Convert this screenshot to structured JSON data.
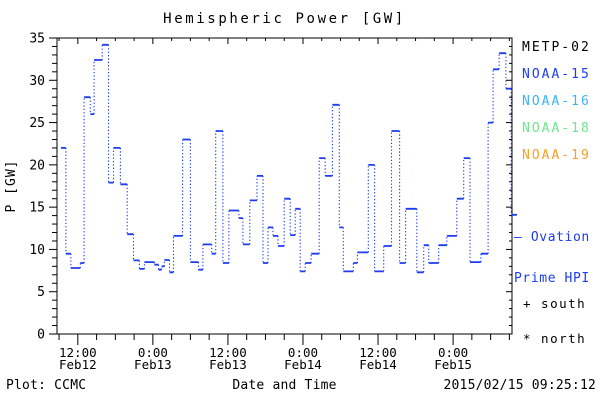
{
  "title": "Hemispheric Power [GW]",
  "footer": {
    "plot_credit": "Plot: CCMC",
    "xaxis_title": "Date and Time",
    "timestamp": "2015/02/15 09:25:12"
  },
  "legend": {
    "satellites": [
      {
        "label": "METP-02",
        "color": "#000000"
      },
      {
        "label": "NOAA-15",
        "color": "#1E3CF0"
      },
      {
        "label": "NOAA-16",
        "color": "#3CB4F0"
      },
      {
        "label": "NOAA-18",
        "color": "#6EE68C"
      },
      {
        "label": "NOAA-19",
        "color": "#F5A028"
      }
    ],
    "line_label_line1": "– Ovation",
    "line_label_line2": "Prime HPI",
    "line_label_color": "#1E3CF0",
    "marker_south": "+ south",
    "marker_north": "* north"
  },
  "chart_data": {
    "type": "line",
    "subtype": "step",
    "title": "Hemispheric Power [GW]",
    "xlabel": "Date and Time",
    "ylabel": "P [GW]",
    "ylim": [
      0,
      35
    ],
    "y_major_ticks": [
      0,
      5,
      10,
      15,
      20,
      25,
      30,
      35
    ],
    "y_minor_step": 1,
    "x_hours_range": [
      8.67,
      81.42
    ],
    "x_minor_step_hours": 3,
    "x_major_ticks": [
      {
        "hour": 12,
        "time": "12:00",
        "date": "Feb12"
      },
      {
        "hour": 24,
        "time": "0:00",
        "date": "Feb13"
      },
      {
        "hour": 36,
        "time": "12:00",
        "date": "Feb13"
      },
      {
        "hour": 48,
        "time": "0:00",
        "date": "Feb14"
      },
      {
        "hour": 60,
        "time": "12:00",
        "date": "Feb14"
      },
      {
        "hour": 72,
        "time": "0:00",
        "date": "Feb15"
      }
    ],
    "grid": false,
    "legend_position": "right",
    "series": [
      {
        "name": "Ovation Prime HPI",
        "color": "#1E3CF0",
        "style": "solid horizontal steps joined by dotted verticals",
        "steps_hour_start_end_gw": [
          [
            9.3,
            10.1,
            22.0
          ],
          [
            10.1,
            10.9,
            9.5
          ],
          [
            10.9,
            12.4,
            7.8
          ],
          [
            12.4,
            13.0,
            8.4
          ],
          [
            13.0,
            14.0,
            28.0
          ],
          [
            14.0,
            14.6,
            26.0
          ],
          [
            14.6,
            15.9,
            32.4
          ],
          [
            15.9,
            16.9,
            34.2
          ],
          [
            16.9,
            17.7,
            17.9
          ],
          [
            17.7,
            18.8,
            22.0
          ],
          [
            18.8,
            19.9,
            17.7
          ],
          [
            19.9,
            20.9,
            11.8
          ],
          [
            20.9,
            21.85,
            8.7
          ],
          [
            21.85,
            22.65,
            7.7
          ],
          [
            22.65,
            24.25,
            8.5
          ],
          [
            24.25,
            24.9,
            8.2
          ],
          [
            24.9,
            25.4,
            7.6
          ],
          [
            25.4,
            25.85,
            8.0
          ],
          [
            25.85,
            26.65,
            8.75
          ],
          [
            26.65,
            27.3,
            7.3
          ],
          [
            27.3,
            28.75,
            11.6
          ],
          [
            28.75,
            30.0,
            23.0
          ],
          [
            30.0,
            31.3,
            8.5
          ],
          [
            31.3,
            32.0,
            7.6
          ],
          [
            32.0,
            33.4,
            10.6
          ],
          [
            33.4,
            34.05,
            9.5
          ],
          [
            34.05,
            35.2,
            24.0
          ],
          [
            35.2,
            36.15,
            8.4
          ],
          [
            36.15,
            37.75,
            14.6
          ],
          [
            37.75,
            38.4,
            13.7
          ],
          [
            38.4,
            39.5,
            10.6
          ],
          [
            39.5,
            40.65,
            15.8
          ],
          [
            40.65,
            41.6,
            18.7
          ],
          [
            41.6,
            42.4,
            8.4
          ],
          [
            42.4,
            43.2,
            12.6
          ],
          [
            43.2,
            44.0,
            11.6
          ],
          [
            44.0,
            45.0,
            10.4
          ],
          [
            45.0,
            45.95,
            16.0
          ],
          [
            45.95,
            46.75,
            11.7
          ],
          [
            46.75,
            47.55,
            14.8
          ],
          [
            47.55,
            48.35,
            7.4
          ],
          [
            48.35,
            49.3,
            8.4
          ],
          [
            49.3,
            50.6,
            9.5
          ],
          [
            50.6,
            51.55,
            20.8
          ],
          [
            51.55,
            52.7,
            18.7
          ],
          [
            52.7,
            53.8,
            27.1
          ],
          [
            53.8,
            54.45,
            12.6
          ],
          [
            54.45,
            56.05,
            7.4
          ],
          [
            56.05,
            56.7,
            8.4
          ],
          [
            56.7,
            58.45,
            9.65
          ],
          [
            58.45,
            59.45,
            20.0
          ],
          [
            59.45,
            60.9,
            7.4
          ],
          [
            60.9,
            62.15,
            10.4
          ],
          [
            62.15,
            63.45,
            24.0
          ],
          [
            63.45,
            64.4,
            8.4
          ],
          [
            64.4,
            66.2,
            14.8
          ],
          [
            66.2,
            67.3,
            7.3
          ],
          [
            67.3,
            68.1,
            10.5
          ],
          [
            68.1,
            69.7,
            8.4
          ],
          [
            69.7,
            71.0,
            10.5
          ],
          [
            71.0,
            72.6,
            11.6
          ],
          [
            72.6,
            73.7,
            16.0
          ],
          [
            73.7,
            74.7,
            20.8
          ],
          [
            74.7,
            76.45,
            8.5
          ],
          [
            76.45,
            77.6,
            9.5
          ],
          [
            77.6,
            78.4,
            25.0
          ],
          [
            78.4,
            79.35,
            31.3
          ],
          [
            79.35,
            80.45,
            33.2
          ],
          [
            80.45,
            81.3,
            29.0
          ],
          [
            81.3,
            82.2,
            14.1
          ]
        ]
      }
    ]
  }
}
